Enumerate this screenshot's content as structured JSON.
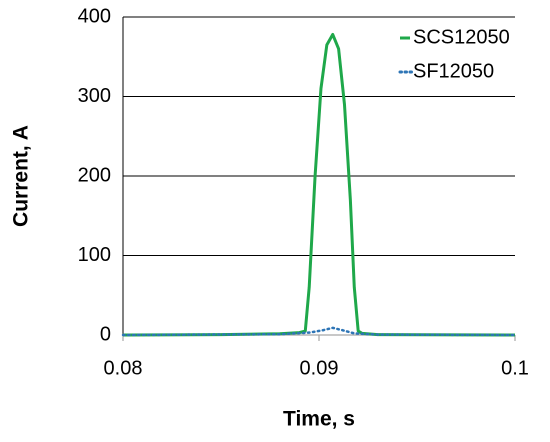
{
  "chart_data": {
    "type": "line",
    "x_label": "Time, s",
    "y_label": "Current, A",
    "xlim": [
      0.08,
      0.1
    ],
    "xticks": [
      0.08,
      0.09,
      0.1
    ],
    "ylim": [
      0,
      400
    ],
    "yticks": [
      0,
      100,
      200,
      300,
      400
    ],
    "grid": true,
    "legend": "upper right",
    "series": [
      {
        "name": "SCS12050",
        "color": "#1fa84a",
        "style": "solid",
        "x": [
          0.08,
          0.085,
          0.088,
          0.089,
          0.0893,
          0.0895,
          0.0898,
          0.0901,
          0.0904,
          0.0907,
          0.091,
          0.0913,
          0.0916,
          0.0918,
          0.092,
          0.0922,
          0.093,
          0.1
        ],
        "values": [
          0,
          0.5,
          1.5,
          3,
          5,
          60,
          200,
          310,
          365,
          378,
          360,
          290,
          170,
          60,
          5,
          2,
          0.5,
          0
        ]
      },
      {
        "name": "SF12050",
        "color": "#2e75b6",
        "style": "dotted",
        "x": [
          0.08,
          0.088,
          0.0895,
          0.0902,
          0.0907,
          0.0912,
          0.0918,
          0.093,
          0.1
        ],
        "values": [
          0,
          1,
          3,
          6,
          9,
          6,
          2,
          0.5,
          0
        ]
      }
    ]
  }
}
